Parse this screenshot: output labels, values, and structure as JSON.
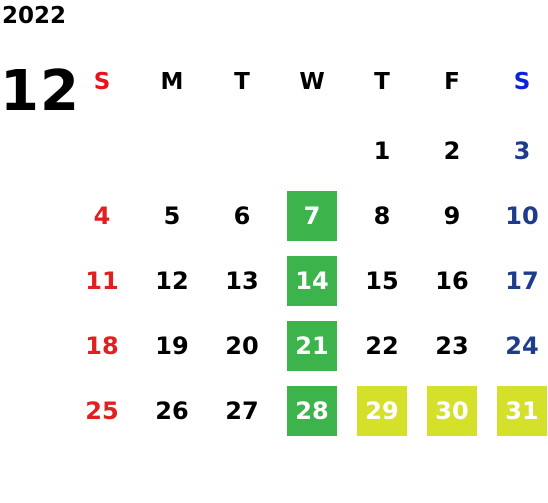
{
  "calendar": {
    "year": "2022",
    "month": "12",
    "weekdays": [
      "S",
      "M",
      "T",
      "W",
      "T",
      "F",
      "S"
    ],
    "weeks": [
      [
        "",
        "",
        "",
        "",
        "1",
        "2",
        "3"
      ],
      [
        "4",
        "5",
        "6",
        "7",
        "8",
        "9",
        "10"
      ],
      [
        "11",
        "12",
        "13",
        "14",
        "15",
        "16",
        "17"
      ],
      [
        "18",
        "19",
        "20",
        "21",
        "22",
        "23",
        "24"
      ],
      [
        "25",
        "26",
        "27",
        "28",
        "29",
        "30",
        "31"
      ]
    ],
    "highlights": {
      "green": [
        "7",
        "14",
        "21",
        "28"
      ],
      "yellow": [
        "29",
        "30",
        "31"
      ]
    },
    "colors": {
      "sunday_header": "#e8141a",
      "saturday_header": "#0a22e0",
      "sunday": "#e02020",
      "saturday": "#1e3c8c",
      "green_highlight": "#3cb44b",
      "yellow_highlight": "#d4e02a"
    }
  }
}
